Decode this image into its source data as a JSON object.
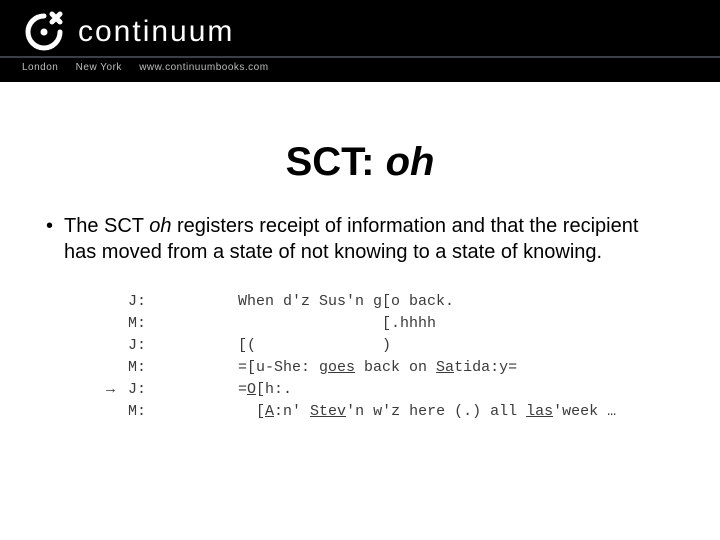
{
  "header": {
    "brand_name": "continuum",
    "meta_left": "London",
    "meta_mid": "New York",
    "meta_right": "www.continuumbooks.com",
    "bg_color": "#000000",
    "text_color": "#ffffff",
    "meta_color": "#bdbdbd",
    "rule_color": "#3a3e46"
  },
  "title": {
    "prefix": "SCT: ",
    "italic_word": "oh",
    "fontsize": 40,
    "color": "#000000"
  },
  "bullet": {
    "mark": "•",
    "text_prefix": "The SCT ",
    "italic_word": "oh",
    "text_suffix": " registers receipt of information and that the recipient has moved from a state of not knowing to a state of knowing.",
    "fontsize": 20,
    "color": "#000000"
  },
  "transcript": {
    "font_family": "Courier New",
    "fontsize": 15,
    "text_color": "#3a3a3a",
    "lines": [
      {
        "arrow": "",
        "speaker": "J:",
        "utt_html": "When d'z Sus'n g[o back."
      },
      {
        "arrow": "",
        "speaker": "M:",
        "utt_html": "                [.hhhh"
      },
      {
        "arrow": "",
        "speaker": "J:",
        "utt_html": "[(              )"
      },
      {
        "arrow": "",
        "speaker": "M:",
        "utt_html": "=[u-She: <span class='u'>goes</span> back on <span class='u'>Sa</span>tida:y="
      },
      {
        "arrow": "→",
        "speaker": "J:",
        "utt_html": "=<span class='u'>O</span>[h:."
      },
      {
        "arrow": "",
        "speaker": "M:",
        "utt_html": "  [<span class='u'>A</span>:n' <span class='u'>Stev</span>'n w'z here (.) all <span class='u'>las</span>'week …"
      }
    ]
  },
  "layout": {
    "slide_width": 720,
    "slide_height": 540,
    "background": "#ffffff"
  }
}
